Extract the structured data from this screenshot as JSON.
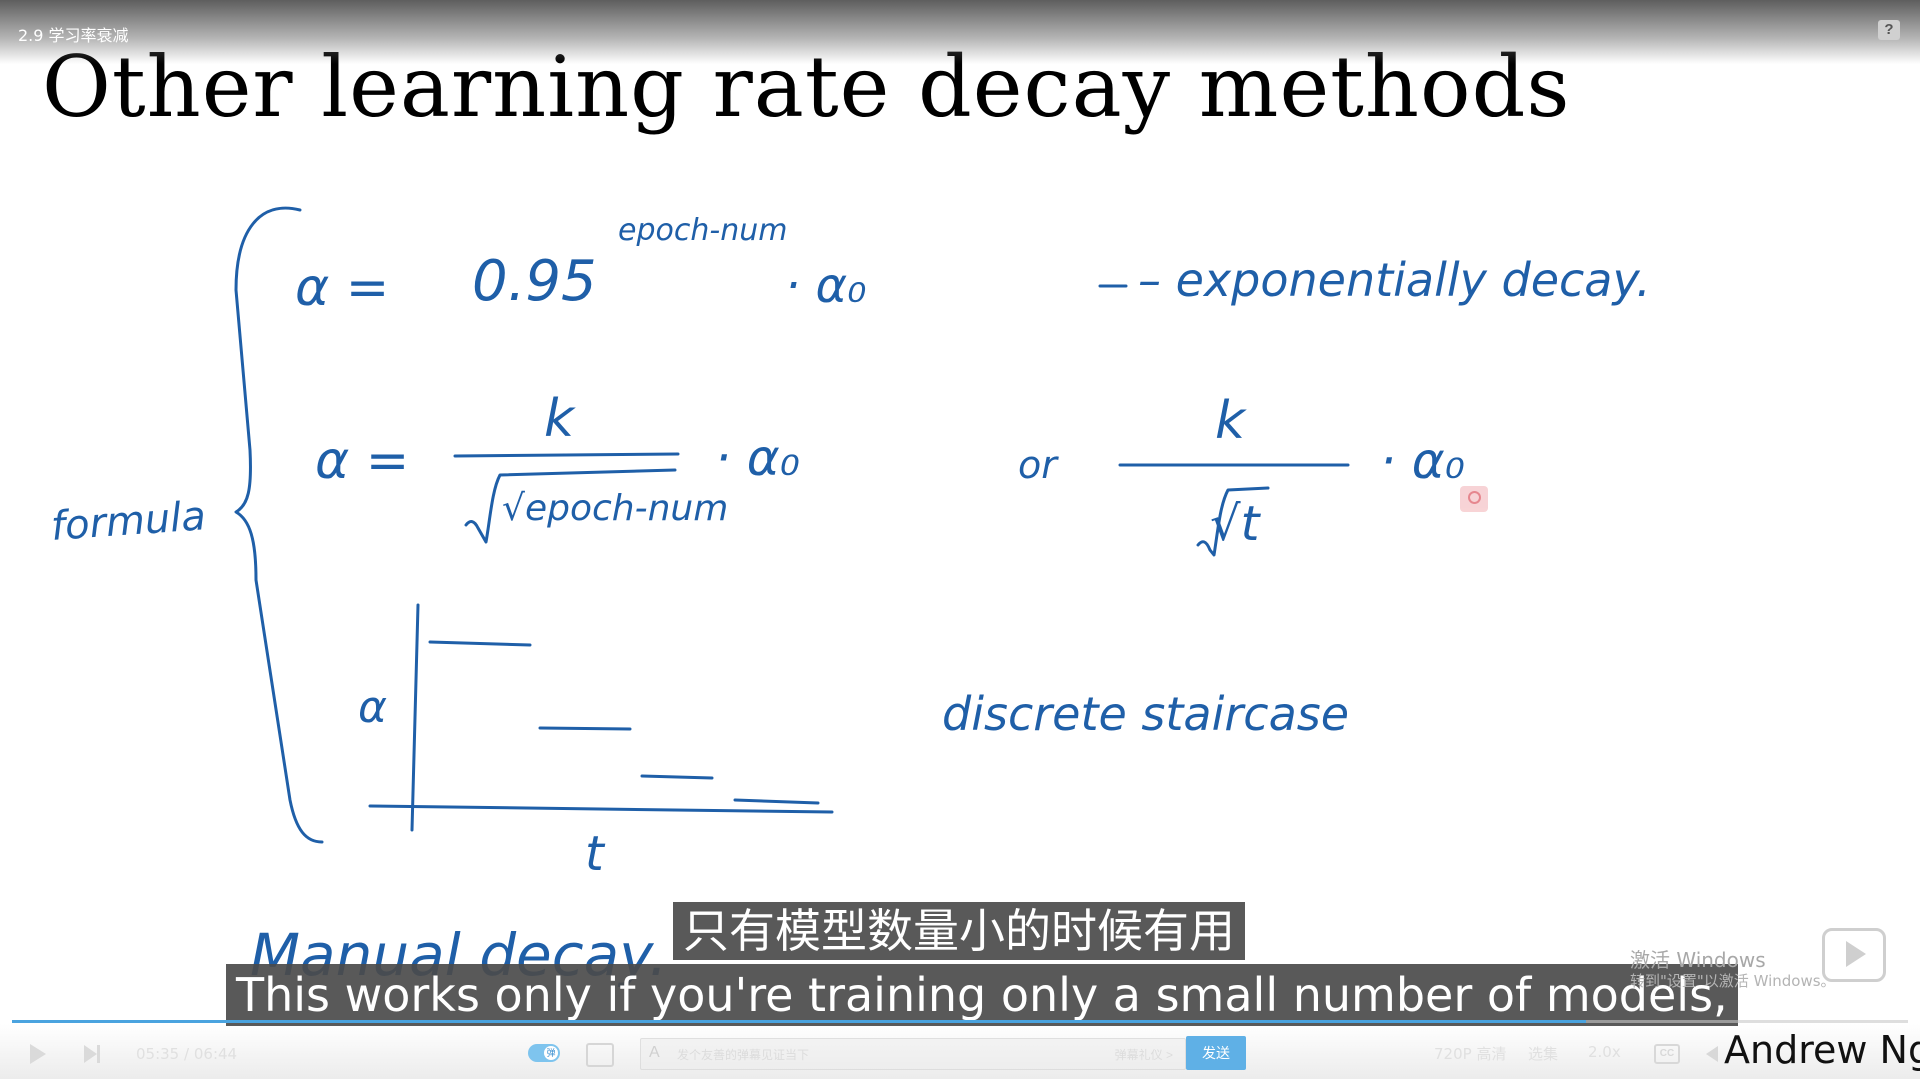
{
  "player": {
    "video_title": "2.9 学习率衰减",
    "help_label": "?",
    "time_current": "05:35",
    "time_separator": "/",
    "time_total": "06:44",
    "progress_fraction": 0.83,
    "danmaku_toggle_label": "弹",
    "danmaku_placeholder": "发个友善的弹幕见证当下",
    "danmaku_etiquette": "弹幕礼仪 >",
    "send_label": "发送",
    "quality_label": "720P 高清",
    "episodes_label": "选集",
    "speed_label": "2.0x",
    "cc_label": "CC"
  },
  "slide": {
    "title": "Other learning rate decay methods",
    "presenter": "Andrew Ng",
    "notes": {
      "formula_side": "formula",
      "eq1_alpha": "α =",
      "eq1_base": "0.95",
      "eq1_exponent": "epoch-num",
      "eq1_tail": "· α₀",
      "eq1_note": "– exponentially decay.",
      "eq2_alpha": "α =",
      "eq2_num": "k",
      "eq2_den": "√epoch-num",
      "eq2_tail": "· α₀",
      "eq2_or": "or",
      "eq2b_num": "k",
      "eq2b_den": "√t",
      "eq2b_tail": "· α₀",
      "staircase_y": "α",
      "staircase_x": "t",
      "staircase_note": "discrete staircase",
      "manual": "Manual decay."
    }
  },
  "subtitles": {
    "chinese": "只有模型数量小的时候有用",
    "english": "This works only if you're training only a small number of models,"
  },
  "watermark": {
    "line1": "激活 Windows",
    "line2": "转到\"设置\"以激活 Windows。"
  }
}
